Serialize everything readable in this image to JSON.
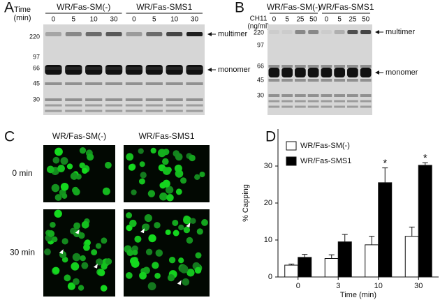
{
  "panels": {
    "A": {
      "letter": "A",
      "time_label": "Time",
      "time_unit": "(min)",
      "groups": [
        "WR/Fas-SM(-)",
        "WR/Fas-SMS1"
      ],
      "lanes": [
        "0",
        "5",
        "10",
        "30",
        "0",
        "5",
        "10",
        "30"
      ],
      "markers": [
        "220",
        "97",
        "66",
        "45",
        "30"
      ],
      "bands": [
        "multimer",
        "monomer"
      ]
    },
    "B": {
      "letter": "B",
      "dose_label": "CH11",
      "dose_unit": "(ng/ml)",
      "groups": [
        "WR/Fas-SM(-)",
        "WR/Fas-SMS1"
      ],
      "lanes": [
        "0",
        "5",
        "25",
        "50",
        "0",
        "5",
        "25",
        "50"
      ],
      "markers": [
        "220",
        "97",
        "66",
        "45",
        "30"
      ],
      "bands": [
        "multimer",
        "monomer"
      ]
    },
    "C": {
      "letter": "C",
      "columns": [
        "WR/Fas-SM(-)",
        "WR/Fas-SMS1"
      ],
      "rows": [
        "0 min",
        "30 min"
      ]
    }
  },
  "chart_data": {
    "type": "bar",
    "letter": "D",
    "ylabel": "% Capping",
    "xlabel": "Time (min)",
    "categories": [
      "0",
      "3",
      "10",
      "30"
    ],
    "series": [
      {
        "name": "WR/Fas-SM(-)",
        "color": "#ffffff",
        "values": [
          3.2,
          5,
          8.7,
          11
        ],
        "errors": [
          0.3,
          1,
          2.3,
          2.5
        ]
      },
      {
        "name": "WR/Fas-SMS1",
        "color": "#000000",
        "values": [
          5.3,
          9.5,
          25.5,
          30.2
        ],
        "errors": [
          0.8,
          2,
          4,
          0.7
        ]
      }
    ],
    "ylim": [
      0,
      40
    ],
    "yticks": [
      0,
      10,
      20,
      30
    ],
    "annotations": [
      {
        "text": "*",
        "category": "10"
      },
      {
        "text": "*",
        "category": "30"
      }
    ]
  }
}
